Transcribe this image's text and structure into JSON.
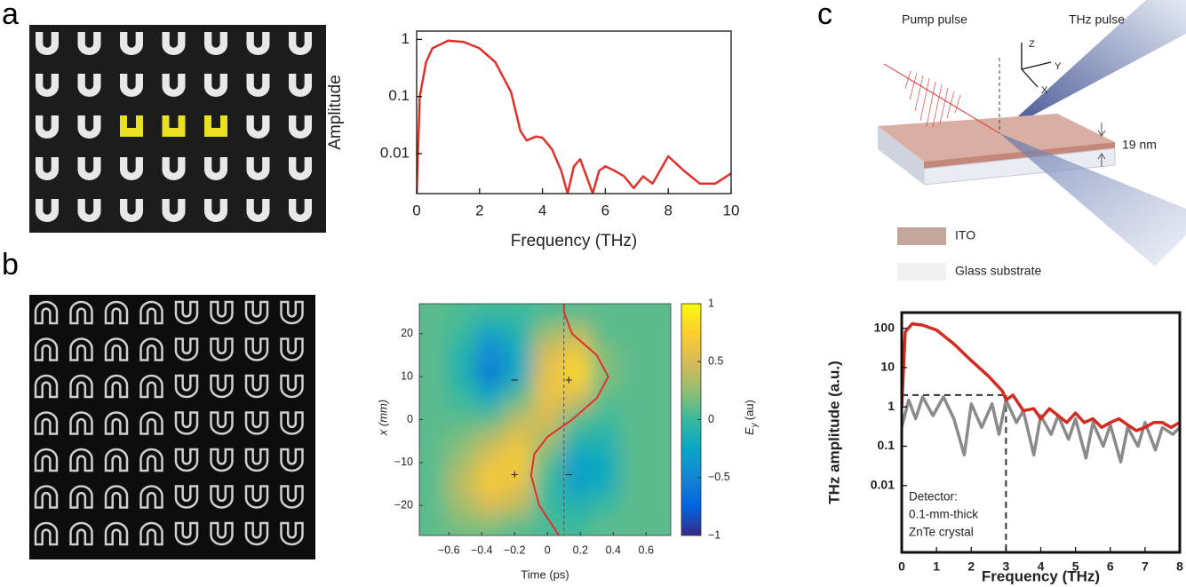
{
  "panels": [
    "a",
    "b",
    "c"
  ],
  "chart_data": [
    {
      "type": "line",
      "ylog": true,
      "x_label": "Frequency (THz)",
      "y_label": "Amplitude",
      "xlim": [
        0,
        10
      ],
      "xticks": [
        0,
        2,
        4,
        6,
        8,
        10
      ],
      "ylim": [
        0.002,
        1.4
      ],
      "yticks": [
        1,
        0.1,
        0.01
      ],
      "series": [
        {
          "color": "#e0312a",
          "x": [
            0,
            0.1,
            0.3,
            0.5,
            1,
            1.5,
            2,
            2.5,
            3,
            3.3,
            3.5,
            3.8,
            4,
            4.3,
            4.6,
            4.8,
            5,
            5.2,
            5.4,
            5.6,
            5.8,
            6,
            6.3,
            6.6,
            6.9,
            7.2,
            7.5,
            8,
            8.5,
            9,
            9.5,
            10
          ],
          "values": [
            0.002,
            0.1,
            0.4,
            0.7,
            0.95,
            0.9,
            0.7,
            0.4,
            0.12,
            0.025,
            0.017,
            0.02,
            0.019,
            0.012,
            0.005,
            0.002,
            0.006,
            0.008,
            0.004,
            0.002,
            0.005,
            0.006,
            0.005,
            0.004,
            0.0025,
            0.004,
            0.003,
            0.009,
            0.005,
            0.003,
            0.003,
            0.0045
          ]
        }
      ]
    },
    {
      "type": "heatmap",
      "x_label": "Time (ps)",
      "y_label": "x (mm)",
      "colorbar_label": {
        "symbol": "E",
        "subscript": "y",
        "unit": "(au)"
      },
      "xlim": [
        -0.78,
        0.75
      ],
      "xticks": [
        {
          "value": -0.6,
          "label": "−0.6"
        },
        {
          "value": -0.4,
          "label": "−0.4"
        },
        {
          "value": -0.2,
          "label": "−0.2"
        },
        0,
        0.2,
        0.4,
        0.6
      ],
      "ylim": [
        -27,
        27
      ],
      "yticks": [
        20,
        10,
        0,
        {
          "value": -10,
          "label": "−10"
        },
        {
          "value": -20,
          "label": "−20"
        }
      ],
      "x": [
        -0.7,
        -0.525,
        -0.35,
        -0.175,
        0,
        0.175,
        0.35,
        0.525,
        0.7
      ],
      "y": [
        25,
        20,
        15,
        10,
        5,
        0,
        -5,
        -10,
        -15,
        -20,
        -25
      ],
      "z": [
        [
          0.1,
          0.05,
          0,
          0,
          0.05,
          0.1,
          0.1,
          0.1,
          0.1
        ],
        [
          0.1,
          0,
          -0.3,
          -0.1,
          0.3,
          0.4,
          0.1,
          0.1,
          0.1
        ],
        [
          0.1,
          -0.1,
          -0.5,
          -0.2,
          0.5,
          0.7,
          0.2,
          0.1,
          0.1
        ],
        [
          0.1,
          -0.1,
          -0.55,
          -0.2,
          0.6,
          0.8,
          0.2,
          0.1,
          0.1
        ],
        [
          0.1,
          0,
          -0.2,
          0.1,
          0.6,
          0.5,
          0.1,
          0.1,
          0.1
        ],
        [
          0.1,
          0.1,
          0.1,
          0.4,
          0.5,
          0.1,
          0,
          0.1,
          0.1
        ],
        [
          0.1,
          0.2,
          0.4,
          0.6,
          0.3,
          -0.1,
          -0.1,
          0.1,
          0.1
        ],
        [
          0.1,
          0.3,
          0.6,
          0.7,
          0.1,
          -0.3,
          -0.2,
          0.1,
          0.1
        ],
        [
          0.1,
          0.4,
          0.7,
          0.6,
          0,
          -0.3,
          -0.2,
          0.1,
          0.1
        ],
        [
          0.1,
          0.3,
          0.5,
          0.4,
          0,
          -0.1,
          0,
          0.1,
          0.1
        ],
        [
          0.1,
          0.2,
          0.2,
          0.1,
          0.05,
          0,
          0.1,
          0.1,
          0.1
        ]
      ],
      "clim": [
        -1,
        1
      ],
      "colorbar_ticks": [
        1,
        0.5,
        0,
        {
          "value": -0.5,
          "label": "−0.5"
        },
        {
          "value": -1,
          "label": "−1"
        }
      ],
      "colormap": [
        "#352a87",
        "#0363e1",
        "#1485d4",
        "#06a7c6",
        "#38b99e",
        "#92bf73",
        "#d9ba56",
        "#fcce2e",
        "#f9fb0e"
      ],
      "profile": {
        "color": "#e0312a",
        "x": [
          0.07,
          -0.05,
          -0.1,
          -0.08,
          0,
          0.15,
          0.3,
          0.37,
          0.3,
          0.15,
          0.1,
          0.1
        ],
        "y": [
          -27,
          -20,
          -13,
          -8,
          -4,
          0,
          5,
          10,
          15,
          20,
          25,
          27
        ]
      },
      "reference_x": 0.1,
      "annotations": [
        {
          "text": "+",
          "x": 0.13,
          "y": 9
        },
        {
          "text": "−",
          "x": -0.2,
          "y": 9
        },
        {
          "text": "+",
          "x": -0.2,
          "y": -13
        },
        {
          "text": "−",
          "x": 0.13,
          "y": -13
        }
      ]
    },
    {
      "type": "line",
      "ylog": true,
      "x_label": "Frequency (THz)",
      "y_label": "THz amplitude (a.u.)",
      "xlim": [
        0,
        8
      ],
      "xticks": [
        0,
        1,
        2,
        3,
        4,
        5,
        6,
        7,
        8
      ],
      "ylim": [
        0.0002,
        250
      ],
      "yticks": [
        100,
        10,
        1,
        0.1,
        0.01
      ],
      "series": [
        {
          "color": "#8a8a8a",
          "x": [
            0,
            0.2,
            0.4,
            0.6,
            0.9,
            1.2,
            1.5,
            1.8,
            2,
            2.3,
            2.6,
            2.8,
            3,
            3.3,
            3.5,
            3.8,
            4,
            4.3,
            4.5,
            4.8,
            5,
            5.3,
            5.5,
            5.8,
            6,
            6.3,
            6.5,
            6.8,
            7,
            7.3,
            7.5,
            7.8,
            8
          ],
          "values": [
            0.3,
            1.5,
            0.5,
            1.8,
            0.6,
            1.8,
            0.5,
            0.06,
            1.2,
            0.3,
            1.2,
            0.2,
            1.5,
            0.4,
            0.8,
            0.06,
            0.6,
            0.2,
            0.6,
            0.15,
            0.5,
            0.05,
            0.4,
            0.1,
            0.35,
            0.04,
            0.3,
            0.1,
            0.4,
            0.08,
            0.3,
            0.2,
            0.3
          ]
        },
        {
          "color": "#d42a20",
          "x": [
            0,
            0.1,
            0.3,
            0.6,
            1,
            1.5,
            2,
            2.5,
            2.9,
            3,
            3.2,
            3.5,
            3.8,
            4,
            4.25,
            4.5,
            4.75,
            5,
            5.25,
            5.5,
            5.75,
            6,
            6.25,
            6.5,
            6.75,
            7,
            7.25,
            7.5,
            7.75,
            8
          ],
          "values": [
            1,
            80,
            130,
            120,
            90,
            40,
            15,
            6,
            2.5,
            1.5,
            2,
            0.8,
            0.9,
            0.5,
            0.9,
            0.6,
            0.4,
            0.7,
            0.4,
            0.5,
            0.3,
            0.4,
            0.5,
            0.35,
            0.25,
            0.3,
            0.4,
            0.4,
            0.3,
            0.4
          ]
        }
      ],
      "cutoff": {
        "x": 3,
        "y": 2
      },
      "annotation": [
        "Detector:",
        "0.1-mm-thick",
        "ZnTe crystal"
      ]
    }
  ],
  "diagram": {
    "pump_label": "Pump pulse",
    "thz_label": "THz pulse",
    "axes": [
      "Z",
      "Y",
      "X"
    ],
    "thickness": "19 nm",
    "legend": [
      {
        "label": "ITO",
        "color": "#c4a79c"
      },
      {
        "label": "Glass substrate",
        "color": "#f0f0f0"
      }
    ]
  }
}
